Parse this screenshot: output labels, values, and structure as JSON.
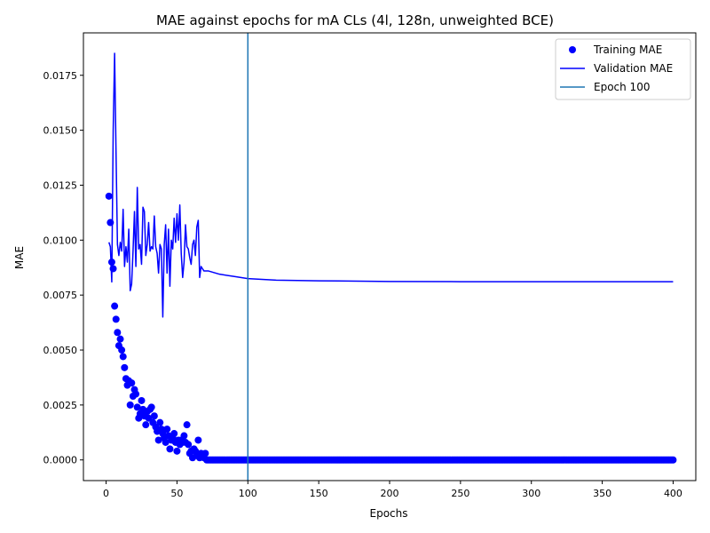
{
  "chart_data": {
    "type": "line",
    "title": "MAE against epochs for mA CLs (4l, 128n, unweighted BCE)",
    "xlabel": "Epochs",
    "ylabel": "MAE",
    "xlim": [
      -16,
      416
    ],
    "ylim": [
      -0.00094,
      0.01943
    ],
    "xticks": [
      0,
      50,
      100,
      150,
      200,
      250,
      300,
      350,
      400
    ],
    "xtick_labels": [
      "0",
      "50",
      "100",
      "150",
      "200",
      "250",
      "300",
      "350",
      "400"
    ],
    "yticks": [
      0.0,
      0.0025,
      0.005,
      0.0075,
      0.01,
      0.0125,
      0.015,
      0.0175
    ],
    "ytick_labels": [
      "0.0000",
      "0.0025",
      "0.0050",
      "0.0075",
      "0.0100",
      "0.0125",
      "0.0150",
      "0.0175"
    ],
    "grid": false,
    "legend_position": "top-right",
    "legend": [
      "Training MAE",
      "Validation MAE",
      "Epoch 100"
    ],
    "colors": {
      "training": "#0000ff",
      "validation": "#0000ff",
      "vline": "#1f77b4"
    },
    "series": [
      {
        "name": "Training MAE",
        "style": "markers",
        "first_x": 2,
        "values": [
          0.012,
          0.0108,
          0.009,
          0.0087,
          0.007,
          0.0064,
          0.0058,
          0.0052,
          0.0055,
          0.005,
          0.0047,
          0.0042,
          0.0037,
          0.0034,
          0.0036,
          0.0025,
          0.0035,
          0.0029,
          0.0032,
          0.003,
          0.0024,
          0.0019,
          0.0021,
          0.0027,
          0.0023,
          0.002,
          0.0016,
          0.0022,
          0.0019,
          0.0023,
          0.0024,
          0.0017,
          0.002,
          0.0015,
          0.0013,
          0.0009,
          0.0017,
          0.0014,
          0.0012,
          0.001,
          0.0008,
          0.0014,
          0.0011,
          0.0005,
          0.0009,
          0.001,
          0.0012,
          0.0008,
          0.0004,
          0.0009,
          0.0007,
          0.0009,
          0.0008,
          0.0011,
          0.0008,
          0.0016,
          0.0007,
          0.0003,
          0.0004,
          0.0001,
          0.0005,
          0.0004,
          0.0002,
          0.0009,
          0.0001,
          0.0003,
          0.0002,
          0.0001,
          0.0003
        ],
        "tail_value": 0.0,
        "tail_last_x": 400
      },
      {
        "name": "Validation MAE",
        "style": "line",
        "first_x": 2,
        "values": [
          0.0099,
          0.0097,
          0.0081,
          0.015,
          0.0185,
          0.014,
          0.0098,
          0.0093,
          0.0099,
          0.0095,
          0.0114,
          0.0088,
          0.0097,
          0.009,
          0.0105,
          0.0077,
          0.008,
          0.0095,
          0.0113,
          0.0088,
          0.0124,
          0.0096,
          0.0098,
          0.0089,
          0.0115,
          0.0113,
          0.0093,
          0.0098,
          0.0108,
          0.0095,
          0.0097,
          0.0096,
          0.0111,
          0.0097,
          0.0094,
          0.0085,
          0.0098,
          0.0096,
          0.0065,
          0.0098,
          0.0107,
          0.0085,
          0.0105,
          0.0079,
          0.01,
          0.0096,
          0.011,
          0.0099,
          0.0112,
          0.01,
          0.0116,
          0.0094,
          0.0083,
          0.009,
          0.0107,
          0.0097,
          0.0096,
          0.0092,
          0.0089,
          0.0098,
          0.01,
          0.0093,
          0.0106,
          0.0109,
          0.0083,
          0.0088,
          0.0087,
          0.0086
        ],
        "tail_points": [
          [
            72,
            0.0086
          ],
          [
            80,
            0.00845
          ],
          [
            90,
            0.00835
          ],
          [
            100,
            0.00825
          ],
          [
            120,
            0.00818
          ],
          [
            150,
            0.00815
          ],
          [
            200,
            0.00812
          ],
          [
            250,
            0.00811
          ],
          [
            300,
            0.00811
          ],
          [
            350,
            0.00811
          ],
          [
            400,
            0.00811
          ]
        ]
      }
    ],
    "vline": {
      "x": 100,
      "label": "Epoch 100"
    }
  }
}
